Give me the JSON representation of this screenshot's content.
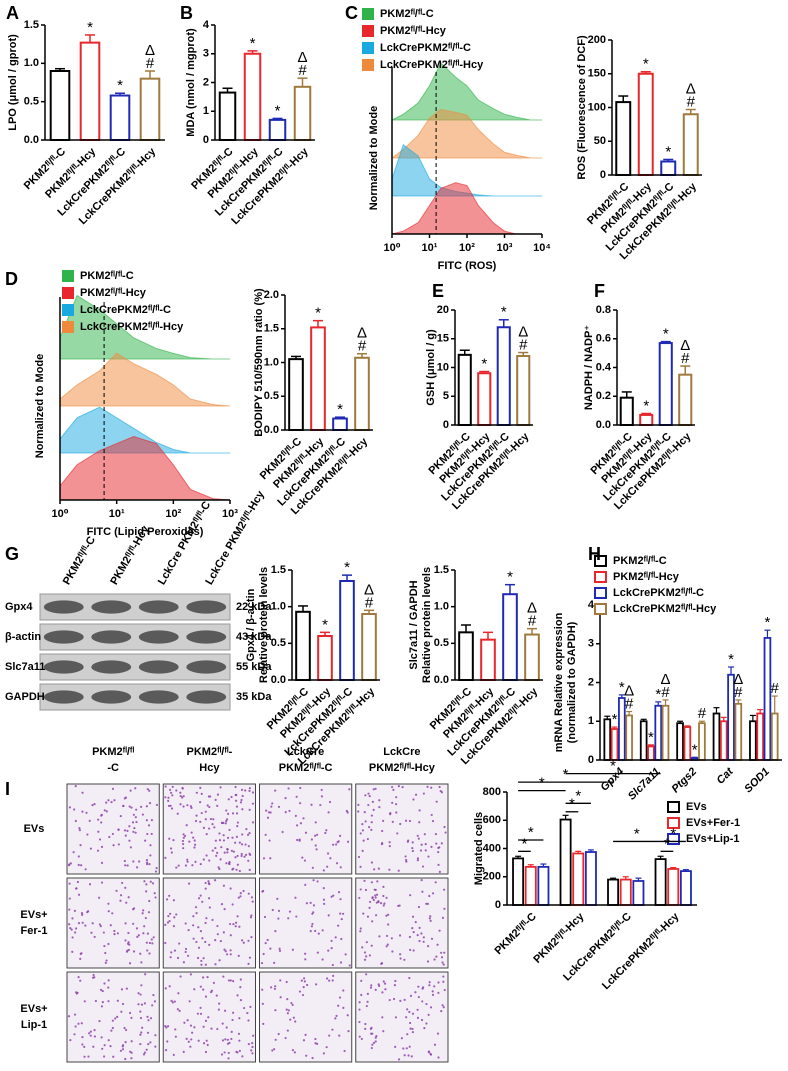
{
  "chart_data": [
    {
      "panel": "A",
      "type": "bar",
      "ylabel": "LPO (μmol / gprot)",
      "categories": [
        "PKM2ᶠˡ/ᶠˡ-C",
        "PKM2ᶠˡ/ᶠˡ-Hcy",
        "LckCrePKM2ᶠˡ/ᶠˡ-C",
        "LckCrePKM2ᶠˡ/ᶠˡ-Hcy"
      ],
      "colors": [
        "#000000",
        "#e8262b",
        "#1e2ab5",
        "#a07a3c"
      ],
      "values": [
        0.9,
        1.27,
        0.58,
        0.8
      ],
      "errors": [
        0.03,
        0.1,
        0.03,
        0.1
      ],
      "annotations": [
        null,
        [
          "*"
        ],
        [
          "*"
        ],
        [
          "#",
          "Δ"
        ]
      ],
      "ylim": [
        0,
        1.5
      ],
      "yticks": [
        {
          "value": 0,
          "label": "0.0"
        },
        {
          "value": 0.5,
          "label": "0.5"
        },
        {
          "value": 1,
          "label": "1.0"
        },
        {
          "value": 1.5,
          "label": "1.5"
        }
      ]
    },
    {
      "panel": "B",
      "type": "bar",
      "ylabel": "MDA (nmol / mgprot)",
      "categories": [
        "PKM2ᶠˡ/ᶠˡ-C",
        "PKM2ᶠˡ/ᶠˡ-Hcy",
        "LckCrePKM2ᶠˡ/ᶠˡ-C",
        "LckCrePKM2ᶠˡ/ᶠˡ-Hcy"
      ],
      "colors": [
        "#000000",
        "#e8262b",
        "#1e2ab5",
        "#a07a3c"
      ],
      "values": [
        1.65,
        3.0,
        0.7,
        1.85
      ],
      "errors": [
        0.15,
        0.1,
        0.05,
        0.3
      ],
      "annotations": [
        null,
        [
          "*"
        ],
        [
          "*"
        ],
        [
          "#",
          "Δ"
        ]
      ],
      "ylim": [
        0,
        4
      ],
      "yticks": [
        0,
        1,
        2,
        3,
        4
      ]
    },
    {
      "panel": "C",
      "type": "density",
      "ylabel": "Normalized to Mode",
      "xlabel": "FITC (ROS)",
      "log": true,
      "xlim": [
        1,
        10000
      ],
      "xticks": [
        {
          "value": 1,
          "label": "10⁰"
        },
        {
          "value": 10,
          "label": "10¹"
        },
        {
          "value": 100,
          "label": "10²"
        },
        {
          "value": 1000,
          "label": "10³"
        },
        {
          "value": 10000,
          "label": "10⁴"
        }
      ],
      "ref_line": 15,
      "x": [
        1,
        2,
        5,
        10,
        20,
        50,
        100,
        200,
        500,
        1000,
        2000,
        5000,
        10000
      ],
      "series": [
        {
          "name": "PKM2ᶠˡ/ᶠˡ-C",
          "color": "#2fb34a",
          "values": [
            0,
            0.1,
            0.3,
            0.6,
            1.0,
            0.75,
            0.6,
            0.35,
            0.2,
            0.1,
            0.05,
            0,
            0
          ]
        },
        {
          "name": "PKM2ᶠˡ/ᶠˡ-Hcy",
          "color": "#e8262b",
          "values": [
            0,
            0.05,
            0.2,
            0.5,
            0.8,
            0.9,
            0.85,
            0.5,
            0.2,
            0.05,
            0,
            0,
            0
          ]
        },
        {
          "name": "LckCrePKM2ᶠˡ/ᶠˡ-C",
          "color": "#19a9e0",
          "values": [
            0.3,
            0.9,
            0.7,
            0.3,
            0.15,
            0.08,
            0.05,
            0.02,
            0,
            0,
            0,
            0,
            0
          ]
        },
        {
          "name": "LckCrePKM2ᶠˡ/ᶠˡ-Hcy",
          "color": "#ef8a3c",
          "values": [
            0,
            0.15,
            0.4,
            0.7,
            0.85,
            0.8,
            0.75,
            0.5,
            0.25,
            0.1,
            0.05,
            0,
            0
          ]
        }
      ]
    },
    {
      "type": "bar",
      "ylabel": "ROS (Fluorescence of DCF)",
      "categories": [
        "PKM2ᶠˡ/ᶠˡ-C",
        "PKM2ᶠˡ/ᶠˡ-Hcy",
        "LckCrePKM2ᶠˡ/ᶠˡ-C",
        "LckCrePKM2ᶠˡ/ᶠˡ-Hcy"
      ],
      "colors": [
        "#000000",
        "#e8262b",
        "#1e2ab5",
        "#a07a3c"
      ],
      "values": [
        108,
        150,
        20,
        90
      ],
      "errors": [
        9,
        3,
        3,
        7
      ],
      "annotations": [
        null,
        [
          "*"
        ],
        [
          "*"
        ],
        [
          "#",
          "Δ"
        ]
      ],
      "ylim": [
        0,
        200
      ],
      "yticks": [
        0,
        50,
        100,
        150,
        200
      ]
    },
    {
      "panel": "D",
      "type": "density",
      "ylabel": "Normalized to Mode",
      "xlabel": "FITC (Lipid Peroxides)",
      "log": true,
      "xlim": [
        1,
        1000
      ],
      "xticks": [
        {
          "value": 1,
          "label": "10⁰"
        },
        {
          "value": 10,
          "label": "10¹"
        },
        {
          "value": 100,
          "label": "10²"
        },
        {
          "value": 1000,
          "label": "10³"
        }
      ],
      "ref_line": 6,
      "x": [
        1,
        2,
        5,
        10,
        20,
        50,
        100,
        200,
        500,
        1000
      ],
      "series": [
        {
          "name": "PKM2ᶠˡ/ᶠˡ-C",
          "color": "#2fb34a",
          "values": [
            0.3,
            0.9,
            0.7,
            0.5,
            0.3,
            0.15,
            0.08,
            0.02,
            0,
            0
          ]
        },
        {
          "name": "PKM2ᶠˡ/ᶠˡ-Hcy",
          "color": "#e8262b",
          "values": [
            0.2,
            0.5,
            0.7,
            0.8,
            0.9,
            0.8,
            0.5,
            0.15,
            0.02,
            0
          ]
        },
        {
          "name": "LckCrePKM2ᶠˡ/ᶠˡ-C",
          "color": "#19a9e0",
          "values": [
            0.2,
            0.5,
            0.65,
            0.5,
            0.35,
            0.15,
            0.05,
            0,
            0,
            0
          ]
        },
        {
          "name": "LckCrePKM2ᶠˡ/ᶠˡ-Hcy",
          "color": "#ef8a3c",
          "values": [
            0.1,
            0.3,
            0.5,
            0.75,
            0.6,
            0.45,
            0.3,
            0.1,
            0.02,
            0
          ]
        }
      ]
    },
    {
      "type": "bar",
      "ylabel": "BODIPY 510/590nm ratio (%)",
      "categories": [
        "PKM2ᶠˡ/ᶠˡ-C",
        "PKM2ᶠˡ/ᶠˡ-Hcy",
        "LckCrePKM2ᶠˡ/ᶠˡ-C",
        "LckCrePKM2ᶠˡ/ᶠˡ-Hcy"
      ],
      "colors": [
        "#000000",
        "#e8262b",
        "#1e2ab5",
        "#a07a3c"
      ],
      "values": [
        1.05,
        1.52,
        0.17,
        1.07
      ],
      "errors": [
        0.04,
        0.1,
        0.02,
        0.06
      ],
      "annotations": [
        null,
        [
          "*"
        ],
        [
          "*"
        ],
        [
          "#",
          "Δ"
        ]
      ],
      "ylim": [
        0,
        2
      ],
      "yticks": [
        {
          "value": 0,
          "label": "0.0"
        },
        {
          "value": 0.5,
          "label": "0.5"
        },
        {
          "value": 1,
          "label": "1.0"
        },
        {
          "value": 1.5,
          "label": "1.5"
        },
        {
          "value": 2,
          "label": "2.0"
        }
      ]
    },
    {
      "panel": "E",
      "type": "bar",
      "ylabel": "GSH (μmol / g)",
      "categories": [
        "PKM2ᶠˡ/ᶠˡ-C",
        "PKM2ᶠˡ/ᶠˡ-Hcy",
        "LckCrePKM2ᶠˡ/ᶠˡ-C",
        "LckCrePKM2ᶠˡ/ᶠˡ-Hcy"
      ],
      "colors": [
        "#000000",
        "#e8262b",
        "#1e2ab5",
        "#a07a3c"
      ],
      "values": [
        12.2,
        9,
        17,
        12
      ],
      "errors": [
        0.8,
        0.3,
        1.3,
        0.6
      ],
      "annotations": [
        null,
        [
          "*"
        ],
        [
          "*"
        ],
        [
          "#",
          "Δ"
        ]
      ],
      "ylim": [
        0,
        20
      ],
      "yticks": [
        0,
        5,
        10,
        15,
        20
      ]
    },
    {
      "panel": "F",
      "type": "bar",
      "ylabel": "NADPH / NADP⁺",
      "categories": [
        "PKM2ᶠˡ/ᶠˡ-C",
        "PKM2ᶠˡ/ᶠˡ-Hcy",
        "LckCrePKM2ᶠˡ/ᶠˡ-C",
        "LckCrePKM2ᶠˡ/ᶠˡ-Hcy"
      ],
      "colors": [
        "#000000",
        "#e8262b",
        "#1e2ab5",
        "#a07a3c"
      ],
      "values": [
        0.19,
        0.07,
        0.57,
        0.35
      ],
      "errors": [
        0.04,
        0.01,
        0.01,
        0.06
      ],
      "annotations": [
        null,
        [
          "*"
        ],
        [
          "*"
        ],
        [
          "#",
          "Δ"
        ]
      ],
      "ylim": [
        0,
        0.8
      ],
      "yticks": [
        {
          "value": 0,
          "label": "0.0"
        },
        {
          "value": 0.2,
          "label": "0.2"
        },
        {
          "value": 0.4,
          "label": "0.4"
        },
        {
          "value": 0.6,
          "label": "0.6"
        },
        {
          "value": 0.8,
          "label": "0.8"
        }
      ]
    },
    {
      "panel": "G",
      "type": "blot",
      "lanes": [
        "PKM2ᶠˡ/ᶠˡ-C",
        "PKM2ᶠˡ/ᶠˡ-Hcy",
        "LckCre PKM2ᶠˡ/ᶠˡ-C",
        "LckCre PKM2ᶠˡ/ᶠˡ-Hcy"
      ],
      "rows": [
        {
          "name": "Gpx4",
          "size": "22 kDa"
        },
        {
          "name": "β-actin",
          "size": "43 kDa"
        },
        {
          "name": "Slc7a11",
          "size": "55 kDa"
        },
        {
          "name": "GAPDH",
          "size": "35 kDa"
        }
      ]
    },
    {
      "type": "bar",
      "ylabel": [
        "Gpx4 / β-actin",
        "Relative protein levels"
      ],
      "categories": [
        "PKM2ᶠˡ/ᶠˡ-C",
        "PKM2ᶠˡ/ᶠˡ-Hcy",
        "LckCrePKM2ᶠˡ/ᶠˡ-C",
        "LckCrePKM2ᶠˡ/ᶠˡ-Hcy"
      ],
      "colors": [
        "#000000",
        "#e8262b",
        "#1e2ab5",
        "#a07a3c"
      ],
      "values": [
        0.93,
        0.6,
        1.35,
        0.9
      ],
      "errors": [
        0.08,
        0.05,
        0.08,
        0.05
      ],
      "annotations": [
        null,
        [
          "*"
        ],
        [
          "*"
        ],
        [
          "#",
          "Δ"
        ]
      ],
      "ylim": [
        0,
        1.5
      ],
      "yticks": [
        {
          "value": 0,
          "label": "0.0"
        },
        {
          "value": 0.5,
          "label": "0.5"
        },
        {
          "value": 1,
          "label": "1.0"
        },
        {
          "value": 1.5,
          "label": "1.5"
        }
      ]
    },
    {
      "type": "bar",
      "ylabel": [
        "Slc7a11 / GAPDH",
        "Relative protein levels"
      ],
      "categories": [
        "PKM2ᶠˡ/ᶠˡ-C",
        "PKM2ᶠˡ/ᶠˡ-Hcy",
        "LckCrePKM2ᶠˡ/ᶠˡ-C",
        "LckCrePKM2ᶠˡ/ᶠˡ-Hcy"
      ],
      "colors": [
        "#000000",
        "#e8262b",
        "#1e2ab5",
        "#a07a3c"
      ],
      "values": [
        0.65,
        0.55,
        1.17,
        0.62
      ],
      "errors": [
        0.1,
        0.1,
        0.13,
        0.08
      ],
      "annotations": [
        null,
        null,
        [
          "*"
        ],
        [
          "#",
          "Δ"
        ]
      ],
      "ylim": [
        0,
        1.5
      ],
      "yticks": [
        {
          "value": 0,
          "label": "0.0"
        },
        {
          "value": 0.5,
          "label": "0.5"
        },
        {
          "value": 1,
          "label": "1.0"
        },
        {
          "value": 1.5,
          "label": "1.5"
        }
      ]
    },
    {
      "panel": "H",
      "type": "grouped_bar",
      "ylabel": [
        "mRNA Relative expression",
        "(normalized to GAPDH)"
      ],
      "categories": [
        "Gpx4",
        "Slc7a11",
        "Ptgs2",
        "Cat",
        "SOD1"
      ],
      "ylim": [
        0,
        4
      ],
      "yticks": [
        0,
        1,
        2,
        3,
        4
      ],
      "series": [
        {
          "name": "PKM2ᶠˡ/ᶠˡ-C",
          "color": "#000000",
          "values": [
            1.05,
            1.0,
            0.95,
            1.2,
            1.0
          ],
          "errors": [
            0.08,
            0.05,
            0.05,
            0.15,
            0.15
          ]
        },
        {
          "name": "PKM2ᶠˡ/ᶠˡ-Hcy",
          "color": "#e8262b",
          "values": [
            0.8,
            0.35,
            0.85,
            1.0,
            1.2
          ],
          "errors": [
            0.05,
            0.04,
            0.03,
            0.1,
            0.1
          ],
          "annotations": [
            [
              "*"
            ],
            [
              "*"
            ],
            null,
            null,
            null
          ]
        },
        {
          "name": "LckCrePKM2ᶠˡ/ᶠˡ-C",
          "color": "#1e2ab5",
          "values": [
            1.6,
            1.4,
            0.05,
            2.2,
            3.15
          ],
          "errors": [
            0.08,
            0.1,
            0.02,
            0.2,
            0.2
          ],
          "annotations": [
            [
              "*"
            ],
            [
              "*"
            ],
            [
              "*"
            ],
            [
              "*"
            ],
            [
              "*"
            ]
          ]
        },
        {
          "name": "LckCrePKM2ᶠˡ/ᶠˡ-Hcy",
          "color": "#a07a3c",
          "values": [
            1.15,
            1.4,
            0.95,
            1.45,
            1.2
          ],
          "errors": [
            0.1,
            0.15,
            0.05,
            0.1,
            0.45
          ],
          "annotations": [
            [
              "#",
              "Δ"
            ],
            [
              "#",
              "Δ"
            ],
            [
              "#"
            ],
            [
              "#",
              "Δ"
            ],
            [
              "#"
            ]
          ]
        }
      ]
    },
    {
      "panel": "I",
      "type": "image_grid",
      "columns": [
        [
          "PKM2ᶠˡ/ᶠˡ",
          "-C"
        ],
        [
          "PKM2ᶠˡ/ᶠˡ-",
          "Hcy"
        ],
        [
          "LckCre",
          "PKM2ᶠˡ/ᶠˡ-C"
        ],
        [
          "LckCre",
          "PKM2ᶠˡ/ᶠˡ-Hcy"
        ]
      ],
      "rows": [
        [
          "EVs"
        ],
        [
          "EVs+",
          "Fer-1"
        ],
        [
          "EVs+",
          "Lip-1"
        ]
      ]
    },
    {
      "type": "grouped_bar",
      "ylabel": "Migrated cells",
      "categories": [
        "PKM2ᶠˡ/ᶠˡ-C",
        "PKM2ᶠˡ/ᶠˡ-Hcy",
        "LckCrePKM2ᶠˡ/ᶠˡ-C",
        "LckCrePKM2ᶠˡ/ᶠˡ-Hcy"
      ],
      "ylim": [
        0,
        800
      ],
      "yticks": [
        0,
        200,
        400,
        600,
        800
      ],
      "bracket_label": "*",
      "series": [
        {
          "name": "EVs",
          "color": "#000000",
          "values": [
            330,
            605,
            180,
            325
          ],
          "errors": [
            15,
            30,
            10,
            20
          ]
        },
        {
          "name": "EVs+Fer-1",
          "color": "#e8262b",
          "values": [
            270,
            365,
            180,
            255
          ],
          "errors": [
            15,
            15,
            20,
            10
          ]
        },
        {
          "name": "EVs+Lip-1",
          "color": "#1e2ab5",
          "values": [
            270,
            375,
            170,
            240
          ],
          "errors": [
            20,
            15,
            20,
            10
          ]
        }
      ]
    }
  ]
}
